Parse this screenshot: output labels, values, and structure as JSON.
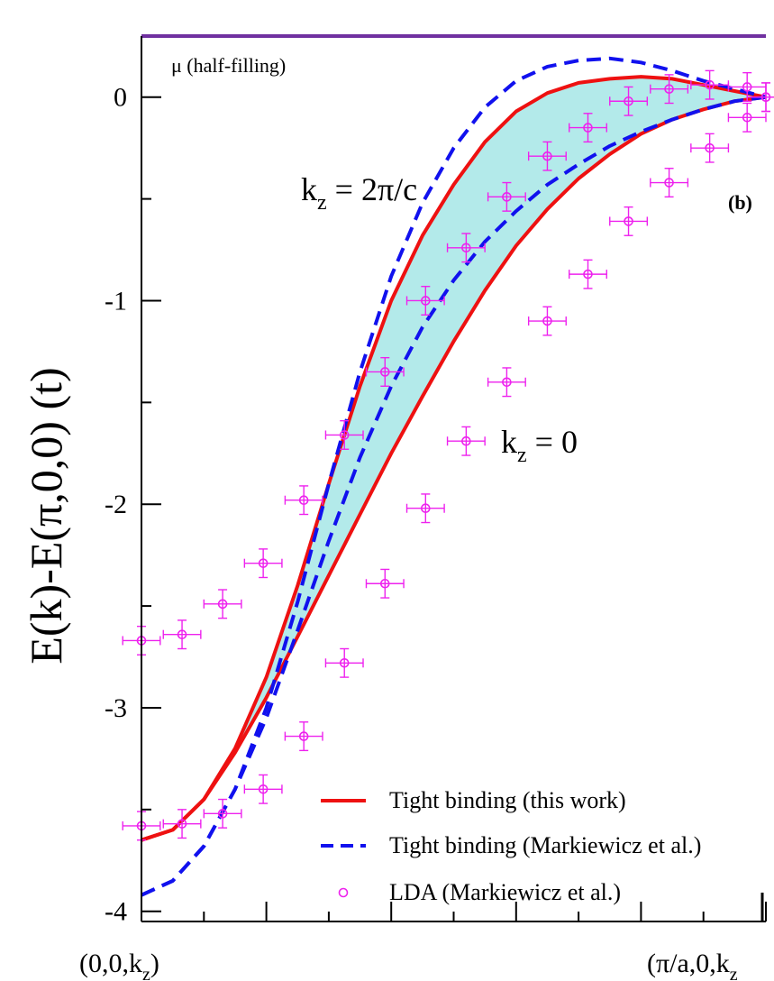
{
  "chart_data": {
    "type": "line",
    "ylabel": "E(k)-E(π,0,0) (t)",
    "xlim": [
      0,
      1
    ],
    "ylim": [
      -4.05,
      0.3
    ],
    "y_ticks": [
      0,
      -1,
      -2,
      -3,
      -4
    ],
    "y_tick_labels": [
      "0",
      "-1",
      "-2",
      "-3",
      "-4"
    ],
    "x_tick_labels": [
      "(0,0,k",
      "(π/a,0,k"
    ],
    "x_tick_subscript": "z",
    "x_tick_close": ")",
    "panel_label": "(b)",
    "mu_line": {
      "label": "μ (half-filling)",
      "y": 0.3,
      "color": "#7030a0"
    },
    "annotations": [
      {
        "name": "kz-2pi-c",
        "text_main": "k",
        "text_sub": "z",
        "text_rest": " = 2π/c"
      },
      {
        "name": "kz-0",
        "text_main": "k",
        "text_sub": "z",
        "text_rest": " = 0"
      }
    ],
    "fill_color": "#b3eaea",
    "legend": {
      "position": "bottom-right",
      "entries": [
        {
          "label": "Tight binding (this work)",
          "style": "solid",
          "color": "#ee1111"
        },
        {
          "label": "Tight binding (Markiewicz et al.)",
          "style": "dashed",
          "color": "#1111ee"
        },
        {
          "label": "LDA (Markiewicz et al.)",
          "style": "marker",
          "color": "#ee22ee"
        }
      ]
    },
    "series": [
      {
        "name": "Tight binding (this work)",
        "style": "solid",
        "color": "#ee1111",
        "curves": [
          {
            "kz": "2π/c",
            "x": [
              0,
              0.05,
              0.1,
              0.15,
              0.2,
              0.25,
              0.3,
              0.35,
              0.4,
              0.45,
              0.5,
              0.55,
              0.6,
              0.65,
              0.7,
              0.75,
              0.8,
              0.85,
              0.9,
              0.95,
              1
            ],
            "y": [
              -3.65,
              -3.6,
              -3.45,
              -3.2,
              -2.85,
              -2.4,
              -1.9,
              -1.42,
              -1.0,
              -0.68,
              -0.43,
              -0.22,
              -0.07,
              0.02,
              0.07,
              0.09,
              0.1,
              0.09,
              0.06,
              0.03,
              0
            ]
          },
          {
            "kz": "0",
            "x": [
              0,
              0.05,
              0.1,
              0.15,
              0.2,
              0.25,
              0.3,
              0.35,
              0.4,
              0.45,
              0.5,
              0.55,
              0.6,
              0.65,
              0.7,
              0.75,
              0.8,
              0.85,
              0.9,
              0.95,
              1
            ],
            "y": [
              -3.65,
              -3.6,
              -3.45,
              -3.22,
              -2.95,
              -2.65,
              -2.35,
              -2.05,
              -1.75,
              -1.47,
              -1.2,
              -0.95,
              -0.73,
              -0.55,
              -0.4,
              -0.28,
              -0.18,
              -0.11,
              -0.06,
              -0.02,
              0
            ]
          }
        ]
      },
      {
        "name": "Tight binding (Markiewicz et al.)",
        "style": "dashed",
        "color": "#1111ee",
        "curves": [
          {
            "kz": "2π/c",
            "x": [
              0,
              0.05,
              0.1,
              0.15,
              0.2,
              0.25,
              0.3,
              0.35,
              0.4,
              0.45,
              0.5,
              0.55,
              0.6,
              0.65,
              0.7,
              0.75,
              0.8,
              0.85,
              0.9,
              0.95,
              1
            ],
            "y": [
              -3.92,
              -3.85,
              -3.68,
              -3.4,
              -3.0,
              -2.48,
              -1.9,
              -1.35,
              -0.88,
              -0.52,
              -0.25,
              -0.05,
              0.08,
              0.15,
              0.18,
              0.19,
              0.17,
              0.13,
              0.08,
              0.04,
              0
            ]
          },
          {
            "kz": "0",
            "x": [
              0,
              0.05,
              0.1,
              0.15,
              0.2,
              0.25,
              0.3,
              0.35,
              0.4,
              0.45,
              0.5,
              0.55,
              0.6,
              0.65,
              0.7,
              0.75,
              0.8,
              0.85,
              0.9,
              0.95,
              1
            ],
            "y": [
              -3.92,
              -3.85,
              -3.68,
              -3.4,
              -3.05,
              -2.62,
              -2.18,
              -1.77,
              -1.42,
              -1.13,
              -0.9,
              -0.71,
              -0.56,
              -0.43,
              -0.33,
              -0.24,
              -0.17,
              -0.11,
              -0.06,
              -0.02,
              0
            ]
          }
        ]
      },
      {
        "name": "LDA (Markiewicz et al.)",
        "style": "marker",
        "color": "#ee22ee",
        "x": [
          0.0,
          0.065,
          0.13,
          0.195,
          0.26,
          0.325,
          0.39,
          0.455,
          0.52,
          0.585,
          0.65,
          0.715,
          0.78,
          0.845,
          0.91,
          0.97,
          1.0,
          0.0,
          0.065,
          0.13,
          0.195,
          0.26,
          0.325,
          0.39,
          0.455,
          0.52,
          0.585,
          0.65,
          0.715,
          0.78,
          0.845,
          0.91,
          0.97,
          1.0
        ],
        "y": [
          -2.67,
          -2.64,
          -2.49,
          -2.29,
          -1.98,
          -1.66,
          -1.35,
          -1.0,
          -0.74,
          -0.49,
          -0.29,
          -0.15,
          -0.02,
          0.04,
          0.06,
          0.05,
          0.0,
          -3.58,
          -3.57,
          -3.52,
          -3.4,
          -3.14,
          -2.78,
          -2.39,
          -2.02,
          -1.69,
          -1.4,
          -1.1,
          -0.87,
          -0.61,
          -0.42,
          -0.25,
          -0.1,
          0.0
        ],
        "xerr": 0.03,
        "yerr": 0.07
      }
    ]
  }
}
